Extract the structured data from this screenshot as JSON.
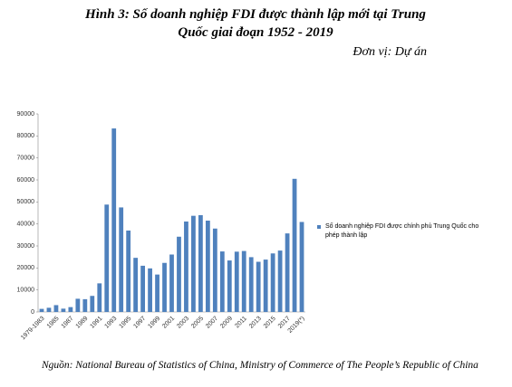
{
  "chart_data": {
    "type": "bar",
    "title": "Hình 3: Số doanh nghiệp FDI được thành lập mới tại Trung Quốc giai đoạn 1952 - 2019",
    "subtitle": "Đơn vị: Dự án",
    "source": "Nguồn: National Bureau of Statistics of China, Ministry of Commerce of The People’s Republic of China",
    "categories": [
      "1979-1983",
      null,
      "1985",
      null,
      "1987",
      null,
      "1989",
      null,
      "1991",
      null,
      "1993",
      null,
      "1995",
      null,
      "1997",
      null,
      "1999",
      null,
      "2001",
      null,
      "2003",
      null,
      "2005",
      null,
      "2007",
      null,
      "2009",
      null,
      "2011",
      null,
      "2013",
      null,
      "2015",
      null,
      "2017",
      null,
      "2019(*)"
    ],
    "series": [
      {
        "name": "Số doanh nghiệp FDI được chính phủ Trung Quốc cho phép thành lập",
        "color": "#4f81bd",
        "values": [
          1400,
          1900,
          3100,
          1500,
          2200,
          6000,
          5800,
          7300,
          13000,
          48800,
          83400,
          47500,
          37000,
          24600,
          21000,
          19800,
          17000,
          22300,
          26100,
          34200,
          41100,
          43700,
          44000,
          41500,
          37900,
          27500,
          23400,
          27400,
          27700,
          24900,
          22800,
          23800,
          26600,
          27900,
          35700,
          60500,
          40900
        ]
      }
    ],
    "ylim": [
      0,
      90000
    ],
    "yticks": [
      0,
      10000,
      20000,
      30000,
      40000,
      50000,
      60000,
      70000,
      80000,
      90000
    ],
    "legend": "right"
  }
}
